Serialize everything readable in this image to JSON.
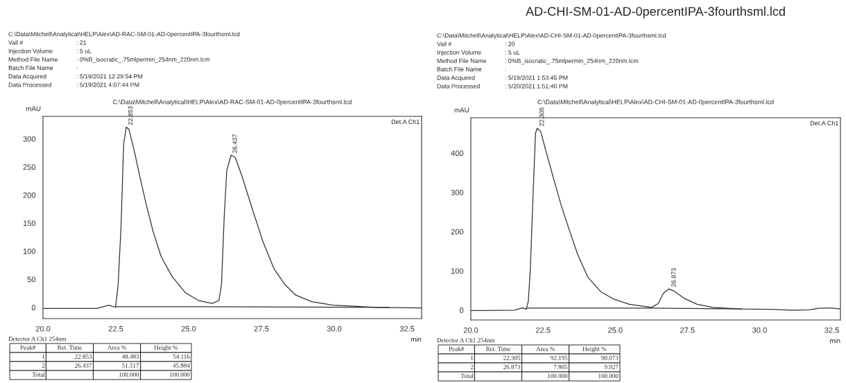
{
  "chart_data": [
    {
      "type": "line",
      "subtitle": "C:\\Data\\Mitchell\\Analytical\\HELP\\Alex\\AD-RAC-SM-01-AD-0percentIPA-3fourthsml.lcd",
      "xlabel": "min",
      "ylabel": "mAU",
      "xlim": [
        20,
        33.0
      ],
      "xticks": [
        {
          "value": 20,
          "label": "20.0"
        },
        {
          "value": 22.5,
          "label": "22.5"
        },
        {
          "value": 25,
          "label": "25.0"
        },
        {
          "value": 27.5,
          "label": "27.5"
        },
        {
          "value": 30,
          "label": "30.0"
        },
        {
          "value": 32.5,
          "label": "32.5"
        }
      ],
      "ylim": [
        -20,
        340
      ],
      "yticks": [
        0,
        50,
        100,
        150,
        200,
        250,
        300
      ],
      "grid": false,
      "legend": false,
      "series": [
        {
          "color": "#303030",
          "x": [
            20.0,
            21.85,
            22.26,
            22.49,
            22.58,
            22.68,
            22.77,
            22.86,
            22.95,
            23.14,
            23.32,
            23.55,
            23.78,
            24.06,
            24.43,
            24.89,
            25.35,
            25.81,
            26.04,
            26.13,
            26.22,
            26.31,
            26.46,
            26.6,
            26.83,
            27.2,
            27.56,
            27.93,
            28.3,
            28.67,
            29.23,
            29.96,
            30.7,
            31.44,
            33.0
          ],
          "values": [
            -2,
            -2,
            4,
            0,
            40,
            145,
            291,
            321,
            317,
            277,
            234,
            182,
            135,
            90,
            55,
            26,
            12,
            7,
            12,
            41,
            159,
            244,
            271,
            267,
            234,
            173,
            116,
            69,
            41,
            22,
            10,
            4,
            2,
            0,
            -1
          ]
        },
        {
          "color": "#303030",
          "x": [
            22.49,
            25.81,
            31.9
          ],
          "values": [
            1,
            1,
            0
          ]
        }
      ],
      "annotations": [
        "C:\\Data\\Mitchell\\Analytical\\HELP\\Alex\\AD-RAC-SM-01-AD-0percentIPA-3fourthsml.lcd",
        "Vail #\t: 21",
        "Injection Volume\t: 5 uL",
        "Method File Name\t: 0%B_isocratic_.75mlpermin_254nm_220nm.lcm",
        "Batch File Name\t:",
        "Data Acquired\t: 5/19/2021 12:29:54 PM",
        "Data Processed\t: 5/19/2021 4:07:44 PM",
        "Det.A Ch1",
        "Detector A Ch1 254nm",
        "Peak#\tRet. Time\tArea %\tHeight %",
        "1\t22.853\t48.483\t54.116",
        "2\t26.437\t51.517\t45.884",
        "Total\t\t100.000\t100.000",
        {
          "text": "22.853",
          "x": 22.853,
          "y": 321
        },
        {
          "text": "26.437",
          "x": 26.437,
          "y": 271
        }
      ]
    },
    {
      "type": "line",
      "title": "AD-CHI-SM-01-AD-0percentIPA-3fourthsml.lcd",
      "subtitle": "C:\\Data\\Mitchell\\Analytical\\HELP\\Alex\\AD-CHI-SM-01-AD-0percentIPA-3fourthsml.lcd",
      "xlabel": "min",
      "ylabel": "mAU",
      "xlim": [
        20,
        32.8
      ],
      "xticks": [
        {
          "value": 20,
          "label": "20.0"
        },
        {
          "value": 22.5,
          "label": "22.5"
        },
        {
          "value": 25,
          "label": "25.0"
        },
        {
          "value": 27.5,
          "label": "27.5"
        },
        {
          "value": 30,
          "label": "30.0"
        },
        {
          "value": 32.5,
          "label": "32.5"
        }
      ],
      "ylim": [
        -25,
        490
      ],
      "yticks": [
        0,
        100,
        200,
        300,
        400
      ],
      "grid": false,
      "legend": false,
      "series": [
        {
          "color": "#303030",
          "x": [
            20.0,
            20.43,
            21.52,
            21.79,
            21.92,
            21.99,
            22.06,
            22.15,
            22.24,
            22.3,
            22.42,
            22.6,
            22.87,
            23.14,
            23.41,
            23.69,
            24.05,
            24.5,
            24.95,
            25.49,
            26.26,
            26.49,
            26.67,
            26.85,
            27.03,
            27.39,
            27.84,
            28.38,
            29.38,
            30.37,
            31.09,
            31.72,
            32.08,
            32.5,
            32.8
          ],
          "values": [
            -1,
            -1,
            0,
            6,
            2,
            23,
            104,
            284,
            451,
            463,
            455,
            405,
            334,
            264,
            204,
            144,
            84,
            47,
            28,
            15,
            7,
            17,
            43,
            54,
            49,
            30,
            15,
            7,
            3,
            2,
            0,
            1,
            5,
            5,
            3
          ]
        },
        {
          "color": "#303030",
          "x": [
            21.92,
            26.26,
            29.4
          ],
          "values": [
            5,
            5,
            3
          ]
        }
      ],
      "annotations": [
        "C:\\Data\\Mitchell\\Analytical\\HELP\\Alex\\AD-CHI-SM-01-AD-0percentIPA-3fourthsml.lcd",
        "Vail #\t: 20",
        "Injection Volume\t: 5 uL",
        "Method File Name\t: 0%B_isocratic_.75mlpermin_254nm_220nm.lcm",
        "Batch File Name\t:",
        "Data Acquired\t: 5/19/2021 1:53:45 PM",
        "Data Processed\t: 5/20/2021 1:51:40 PM",
        "Det.A Ch1",
        "Detector A Ch1 254nm",
        "Peak#\tRet. Time\tArea %\tHeight %",
        "1\t22.305\t92.195\t90.073",
        "2\t26.873\t7.805\t9.927",
        "Total\t\t100.000\t100.000",
        {
          "text": "22.305",
          "x": 22.305,
          "y": 463
        },
        {
          "text": "26.873",
          "x": 26.873,
          "y": 54
        }
      ]
    }
  ]
}
